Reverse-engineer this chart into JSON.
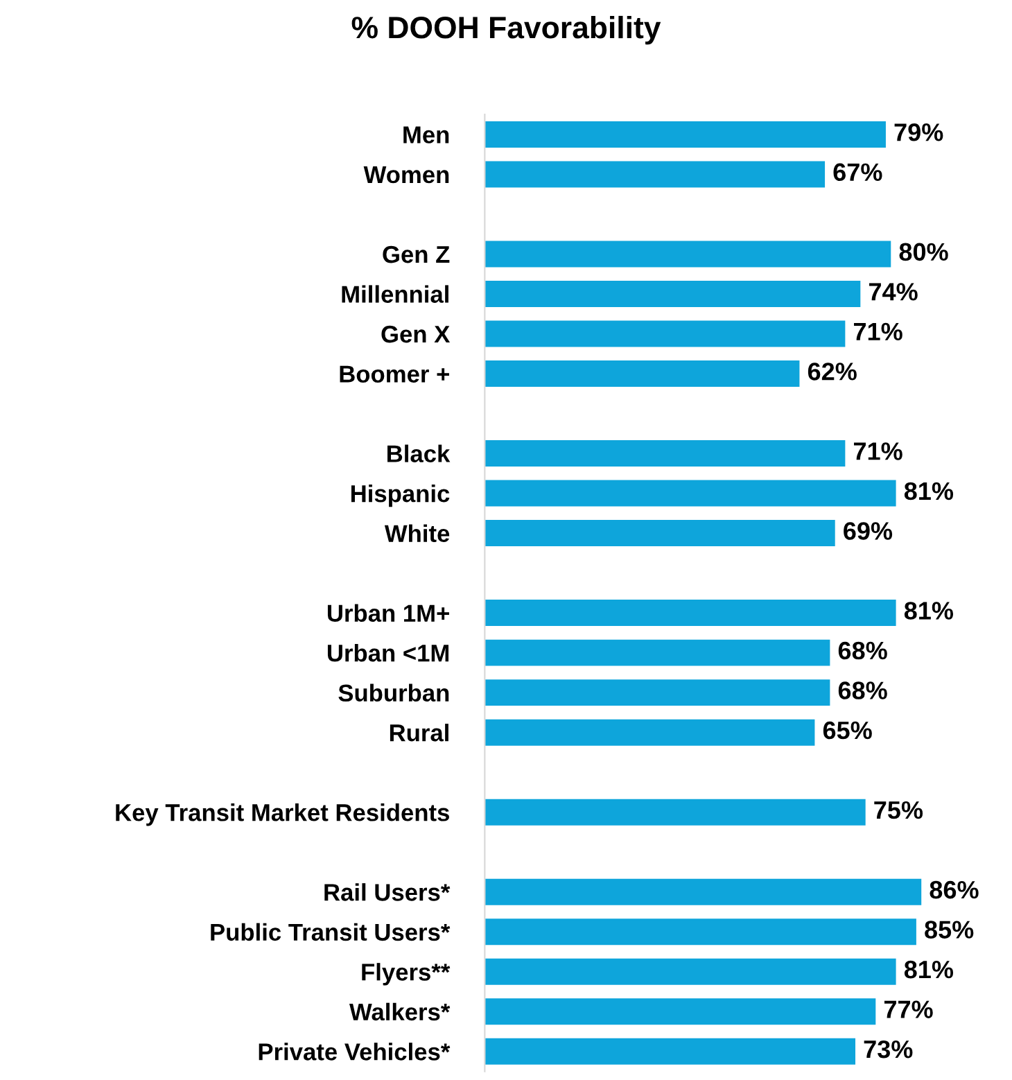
{
  "chart_data": {
    "type": "bar",
    "orientation": "horizontal",
    "title": "% DOOH Favorability",
    "categories": [
      "Men",
      "Women",
      null,
      "Gen Z",
      "Millennial",
      "Gen X",
      "Boomer +",
      null,
      "Black",
      "Hispanic",
      "White",
      null,
      "Urban 1M+",
      "Urban <1M",
      "Suburban",
      "Rural",
      null,
      "Key Transit Market Residents",
      null,
      "Rail Users*",
      "Public Transit Users*",
      "Flyers**",
      "Walkers*",
      "Private Vehicles*"
    ],
    "values": [
      79,
      67,
      null,
      80,
      74,
      71,
      62,
      null,
      71,
      81,
      69,
      null,
      81,
      68,
      68,
      65,
      null,
      75,
      null,
      86,
      85,
      81,
      77,
      73
    ],
    "value_labels": [
      "79%",
      "67%",
      null,
      "80%",
      "74%",
      "71%",
      "62%",
      null,
      "71%",
      "81%",
      "69%",
      null,
      "81%",
      "68%",
      "68%",
      "65%",
      null,
      "75%",
      null,
      "86%",
      "85%",
      "81%",
      "77%",
      "73%"
    ],
    "color": "#0ea5db",
    "tick_labels": "y",
    "grid": false,
    "legend": false
  }
}
